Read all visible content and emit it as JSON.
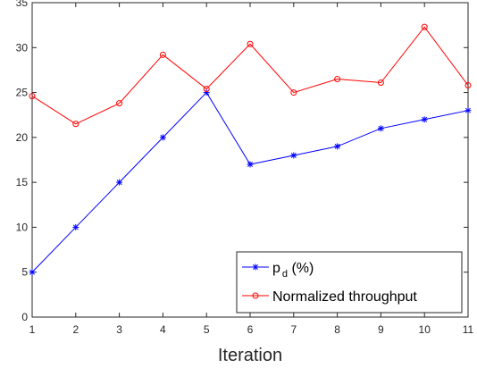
{
  "chart_data": {
    "type": "line",
    "title": "",
    "xlabel": "Iteration",
    "ylabel": "",
    "xlim": [
      1,
      11
    ],
    "ylim": [
      0,
      35
    ],
    "xticks": [
      1,
      2,
      3,
      4,
      5,
      6,
      7,
      8,
      9,
      10,
      11
    ],
    "yticks": [
      0,
      5,
      10,
      15,
      20,
      25,
      30,
      35
    ],
    "grid": false,
    "legend_position": "bottom-right",
    "x": [
      1,
      2,
      3,
      4,
      5,
      6,
      7,
      8,
      9,
      10,
      11
    ],
    "series": [
      {
        "name": "p_d (%)",
        "legend_base": "p",
        "legend_sub": "d",
        "legend_suffix": " (%)",
        "color": "#0000ff",
        "marker": "asterisk",
        "values": [
          5,
          10,
          15,
          20,
          25,
          17,
          18,
          19,
          21,
          22,
          23
        ]
      },
      {
        "name": "Normalized throughput",
        "legend_base": "Normalized throughput",
        "legend_sub": "",
        "legend_suffix": "",
        "color": "#ff0000",
        "marker": "circle",
        "values": [
          24.6,
          21.5,
          23.8,
          29.2,
          25.4,
          30.4,
          25.0,
          26.5,
          26.1,
          32.3,
          25.8
        ]
      }
    ]
  }
}
